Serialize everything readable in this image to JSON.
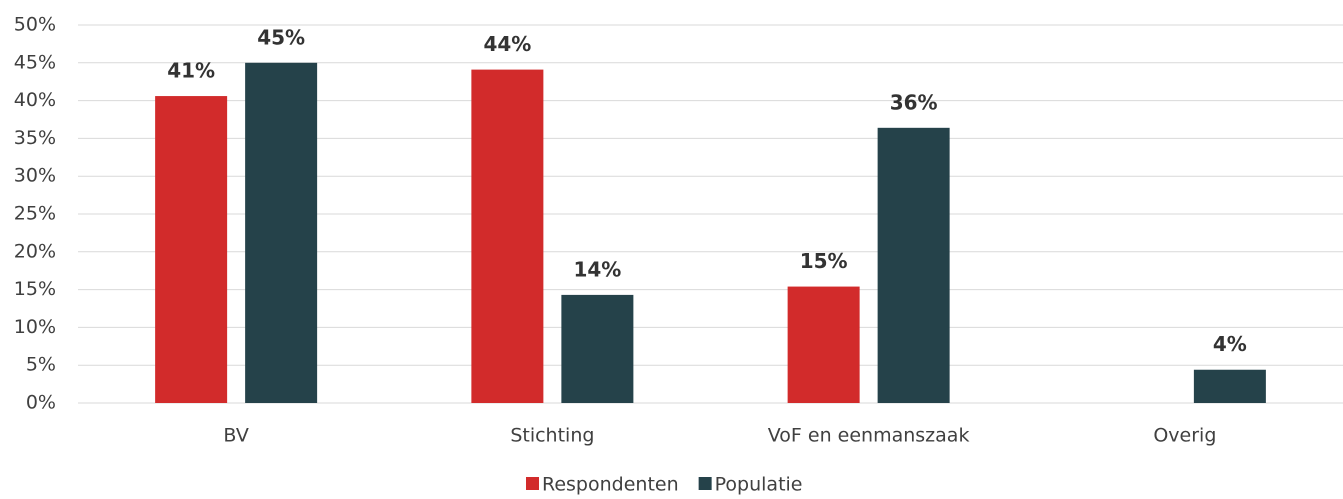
{
  "chart_data": {
    "type": "bar",
    "categories": [
      "BV",
      "Stichting",
      "VoF en eenmanszaak",
      "Overig"
    ],
    "series": [
      {
        "name": "Respondenten",
        "color": "#d22b2b",
        "values": [
          40.6,
          44.1,
          15.4,
          null
        ],
        "value_labels": [
          "41%",
          "44%",
          "15%",
          null
        ]
      },
      {
        "name": "Populatie",
        "color": "#25424a",
        "values": [
          45.0,
          14.3,
          36.4,
          4.4
        ],
        "value_labels": [
          "45%",
          "14%",
          "36%",
          "4%"
        ]
      }
    ],
    "ylim": [
      0,
      50
    ],
    "yticks": [
      {
        "value": 0,
        "label": "0%"
      },
      {
        "value": 5,
        "label": "5%"
      },
      {
        "value": 10,
        "label": "10%"
      },
      {
        "value": 15,
        "label": "15%"
      },
      {
        "value": 20,
        "label": "20%"
      },
      {
        "value": 25,
        "label": "25%"
      },
      {
        "value": 30,
        "label": "30%"
      },
      {
        "value": 35,
        "label": "35%"
      },
      {
        "value": 40,
        "label": "40%"
      },
      {
        "value": 45,
        "label": "45%"
      },
      {
        "value": 50,
        "label": "50%"
      }
    ],
    "grid": true,
    "legend": "bottom"
  }
}
